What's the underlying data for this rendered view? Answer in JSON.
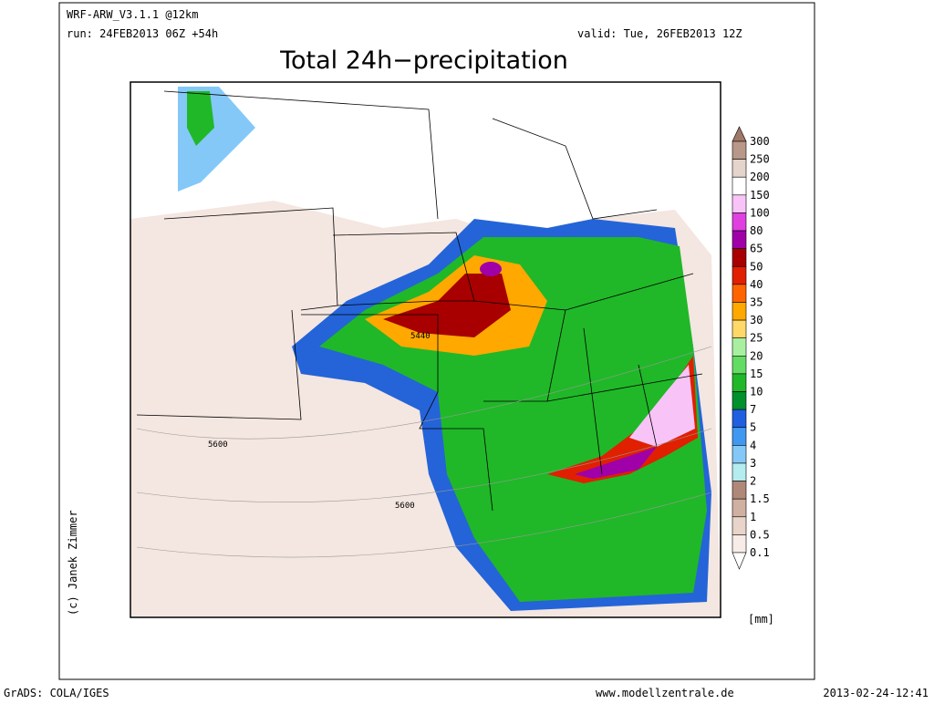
{
  "header": {
    "model": "WRF-ARW_V3.1.1 @12km",
    "run": "run: 24FEB2013 06Z +54h",
    "valid": "valid: Tue, 26FEB2013 12Z",
    "title": "Total 24h−precipitation"
  },
  "map": {
    "contour_labels": [
      "5440",
      "5600",
      "5600"
    ]
  },
  "colorbar": {
    "labels": [
      "300",
      "250",
      "200",
      "150",
      "100",
      "80",
      "65",
      "50",
      "40",
      "35",
      "30",
      "25",
      "20",
      "15",
      "10",
      "7",
      "5",
      "4",
      "3",
      "2",
      "1.5",
      "1",
      "0.5",
      "0.1"
    ],
    "colors": [
      "#a07868",
      "#b89888",
      "#e4d4cc",
      "#ffffff",
      "#f8c4f8",
      "#e040e0",
      "#a000a8",
      "#a80000",
      "#e02000",
      "#ff6400",
      "#ffa800",
      "#ffd868",
      "#a8f0a0",
      "#64dc64",
      "#20b828",
      "#00902c",
      "#2060e0",
      "#4098f0",
      "#84c8f8",
      "#b4ecf0",
      "#b08878",
      "#d0b0a0",
      "#e8d4c8",
      "#f8ece8",
      "#ffffff"
    ],
    "unit": "[mm]"
  },
  "credit": "(c) Janek Zimmer",
  "footer": {
    "left": "GrADS: COLA/IGES",
    "center": "www.modellzentrale.de",
    "right": "2013-02-24-12:41"
  }
}
